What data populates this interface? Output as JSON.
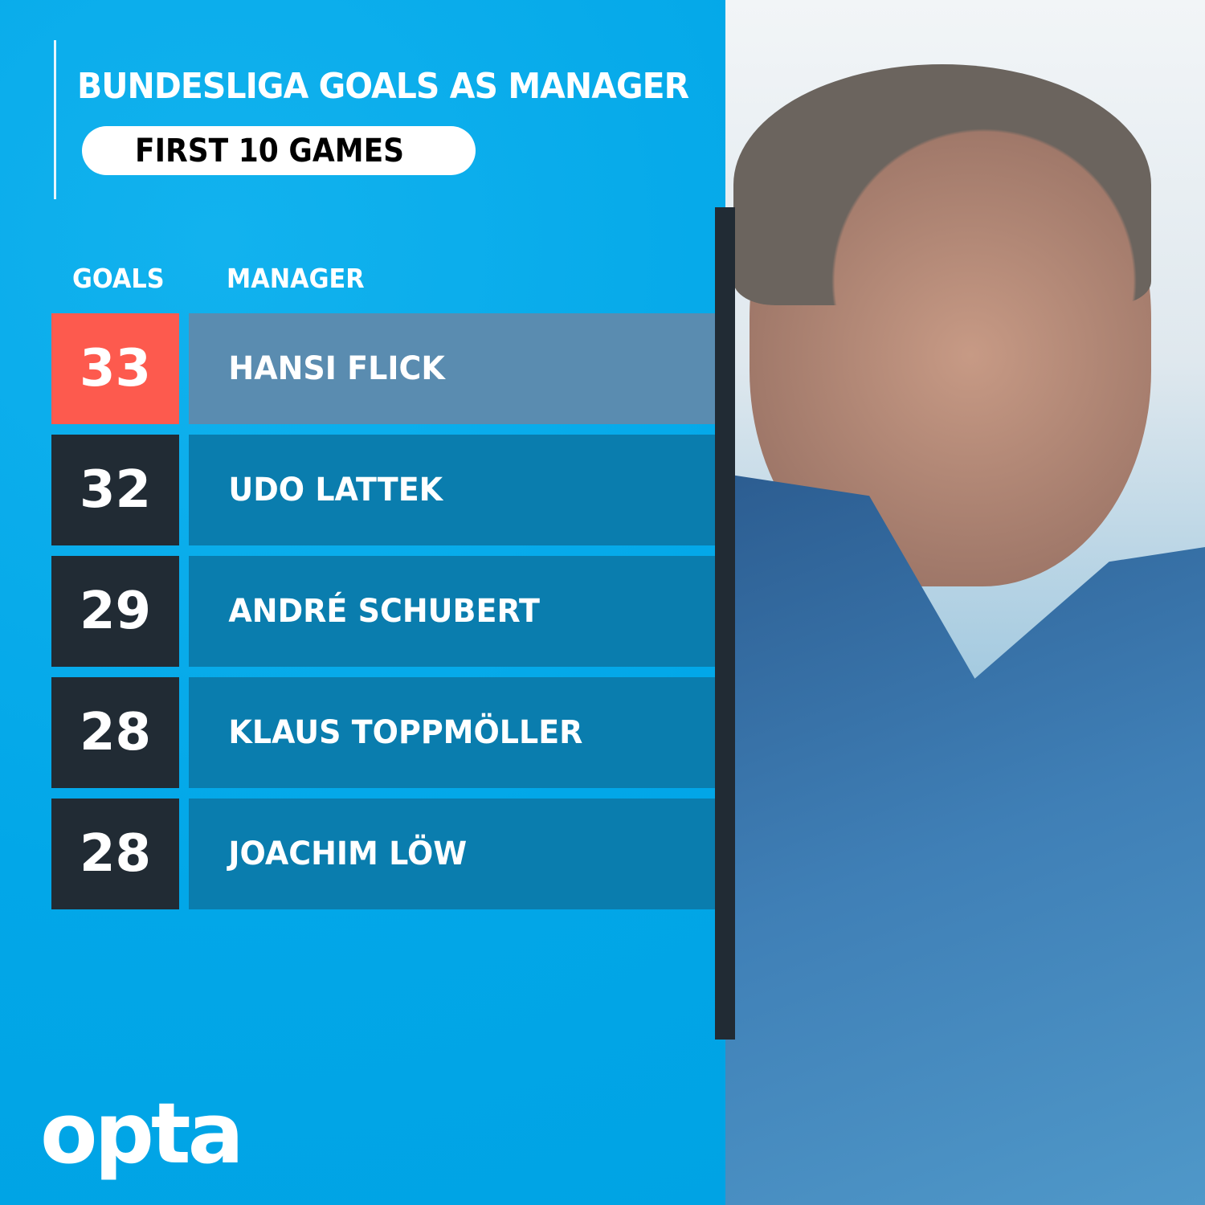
{
  "title": "BUNDESLIGA GOALS AS MANAGER",
  "subtitle": "FIRST 10 GAMES",
  "chart_data": {
    "type": "table",
    "title": "BUNDESLIGA GOALS AS MANAGER",
    "subtitle": "FIRST 10 GAMES",
    "columns": [
      "GOALS",
      "MANAGER"
    ],
    "rows": [
      {
        "goals": "33",
        "manager": "HANSI FLICK",
        "highlight": true
      },
      {
        "goals": "32",
        "manager": "UDO LATTEK",
        "highlight": false
      },
      {
        "goals": "29",
        "manager": "ANDRÉ SCHUBERT",
        "highlight": false
      },
      {
        "goals": "28",
        "manager": "KLAUS TOPPMÖLLER",
        "highlight": false
      },
      {
        "goals": "28",
        "manager": "JOACHIM LÖW",
        "highlight": false
      }
    ]
  },
  "brand": {
    "logo": "opta"
  },
  "colors": {
    "background": "#03a9ea",
    "highlight_goals": "#fd5a4e",
    "highlight_name": "#5a8cb0",
    "goals_box": "#212b34",
    "name_box": "#0a7dae"
  }
}
